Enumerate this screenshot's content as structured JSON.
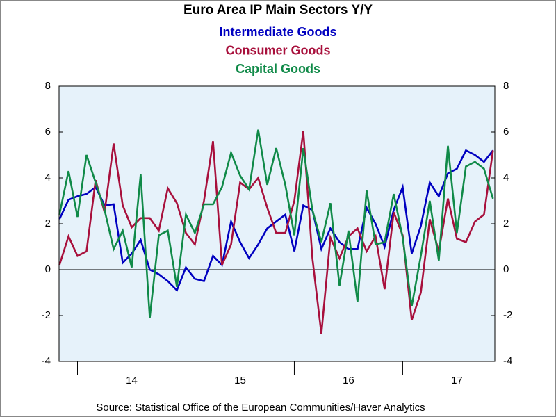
{
  "chart_data": {
    "type": "line",
    "title": "Euro Area IP Main Sectors Y/Y",
    "source": "Source:  Statistical Office of the European Communities/Haver Analytics",
    "x": [
      13.833,
      13.917,
      14,
      14.083,
      14.167,
      14.25,
      14.333,
      14.417,
      14.5,
      14.583,
      14.667,
      14.75,
      14.833,
      14.917,
      15,
      15.083,
      15.167,
      15.25,
      15.333,
      15.417,
      15.5,
      15.583,
      15.667,
      15.75,
      15.833,
      15.917,
      16,
      16.083,
      16.167,
      16.25,
      16.333,
      16.417,
      16.5,
      16.583,
      16.667,
      16.75,
      16.833,
      16.917,
      17,
      17.083,
      17.167,
      17.25,
      17.333,
      17.417,
      17.5,
      17.583,
      17.667,
      17.75,
      17.833
    ],
    "xlim": [
      13.83,
      17.85
    ],
    "xticks": [
      14,
      15,
      16,
      17
    ],
    "x_labels": [
      {
        "value": 14.5,
        "label": "14"
      },
      {
        "value": 15.5,
        "label": "15"
      },
      {
        "value": 16.5,
        "label": "16"
      },
      {
        "value": 17.5,
        "label": "17"
      }
    ],
    "ylim": [
      -4,
      8
    ],
    "yticks": [
      -4,
      -2,
      0,
      2,
      4,
      6,
      8
    ],
    "zero_line": true,
    "background": "#e6f2fa",
    "series": [
      {
        "name": "Intermediate Goods",
        "color": "#0000c0",
        "values": [
          2.2,
          3.05,
          3.2,
          3.3,
          3.6,
          2.8,
          2.85,
          0.3,
          0.7,
          1.3,
          0.0,
          -0.2,
          -0.5,
          -0.9,
          0.1,
          -0.4,
          -0.5,
          0.6,
          0.2,
          2.1,
          1.2,
          0.5,
          1.1,
          1.8,
          2.1,
          2.4,
          0.8,
          2.8,
          2.6,
          0.9,
          1.8,
          1.2,
          0.9,
          0.9,
          2.7,
          2.0,
          1.0,
          2.6,
          3.6,
          0.7,
          1.9,
          3.8,
          3.2,
          4.2,
          4.4,
          5.2,
          5.0,
          4.7,
          5.2
        ]
      },
      {
        "name": "Consumer Goods",
        "color": "#a8103c",
        "values": [
          0.2,
          1.45,
          0.6,
          0.8,
          3.9,
          2.5,
          5.5,
          2.8,
          1.85,
          2.25,
          2.25,
          1.7,
          3.55,
          2.9,
          1.6,
          1.1,
          3.0,
          5.6,
          0.2,
          1.1,
          3.8,
          3.5,
          4.0,
          2.7,
          1.6,
          1.6,
          3.0,
          6.05,
          0.5,
          -2.8,
          1.4,
          0.5,
          1.45,
          1.8,
          0.8,
          1.45,
          -0.85,
          2.5,
          1.5,
          -2.2,
          -1.0,
          2.2,
          0.8,
          3.1,
          1.35,
          1.2,
          2.1,
          2.4,
          5.2
        ]
      },
      {
        "name": "Capital Goods",
        "color": "#108a48",
        "values": [
          2.4,
          4.3,
          2.3,
          5.0,
          3.8,
          2.6,
          0.9,
          1.7,
          0.1,
          4.15,
          -2.1,
          1.5,
          1.7,
          -0.75,
          2.4,
          1.6,
          2.85,
          2.85,
          3.6,
          5.1,
          4.1,
          3.5,
          6.1,
          3.7,
          5.3,
          3.7,
          1.5,
          5.3,
          2.6,
          1.2,
          2.9,
          -0.7,
          1.7,
          -1.4,
          3.45,
          1.1,
          1.2,
          3.3,
          1.4,
          -1.6,
          0.6,
          3.0,
          0.4,
          5.4,
          1.6,
          4.5,
          4.7,
          4.4,
          3.1
        ]
      }
    ]
  }
}
